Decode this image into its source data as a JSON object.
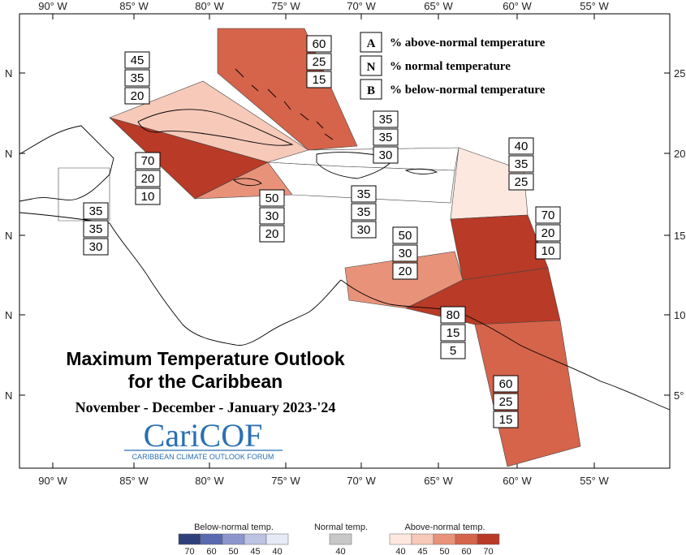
{
  "map": {
    "title_line1": "Maximum Temperature Outlook",
    "title_line2": "for the Caribbean",
    "period": "November - December - January 2023-'24",
    "logo": {
      "text": "CariCOF",
      "subtitle": "CARIBBEAN CLIMATE OUTLOOK FORUM"
    },
    "lon_labels": [
      "90° W",
      "85° W",
      "80° W",
      "75° W",
      "70° W",
      "65° W",
      "60° W",
      "55° W"
    ],
    "lat_labels_left": [
      "N",
      "N",
      "N",
      "N",
      "N"
    ],
    "lat_labels_right": [
      "25",
      "20",
      "15",
      "10",
      "5°"
    ],
    "key": [
      {
        "letter": "A",
        "text": "% above-normal temperature"
      },
      {
        "letter": "N",
        "text": "% normal temperature"
      },
      {
        "letter": "B",
        "text": "% below-normal temperature"
      }
    ],
    "regions": [
      {
        "id": "bahamas",
        "values": [
          "60",
          "25",
          "15"
        ],
        "color": "#d5644b"
      },
      {
        "id": "cuba",
        "values": [
          "45",
          "35",
          "20"
        ],
        "color": "#f6c9b9"
      },
      {
        "id": "cayman-west-cuba",
        "values": [
          "70",
          "20",
          "10"
        ],
        "color": "#b83a27"
      },
      {
        "id": "jamaica",
        "values": [
          "50",
          "30",
          "20"
        ],
        "color": "#e9927a"
      },
      {
        "id": "hispaniola-north",
        "values": [
          "35",
          "35",
          "30"
        ],
        "color": "#ffffff"
      },
      {
        "id": "hispaniola-south",
        "values": [
          "35",
          "35",
          "30"
        ],
        "color": "#ffffff"
      },
      {
        "id": "belize",
        "values": [
          "35",
          "35",
          "30"
        ],
        "color": "#ffffff"
      },
      {
        "id": "leeward-islands",
        "values": [
          "40",
          "35",
          "25"
        ],
        "color": "#fde8e0"
      },
      {
        "id": "windward-islands",
        "values": [
          "70",
          "20",
          "10"
        ],
        "color": "#b83a27"
      },
      {
        "id": "abc-islands",
        "values": [
          "50",
          "30",
          "20"
        ],
        "color": "#e9927a"
      },
      {
        "id": "trinidad",
        "values": [
          "80",
          "15",
          "5"
        ],
        "color": "#b83a27"
      },
      {
        "id": "guianas",
        "values": [
          "60",
          "25",
          "15"
        ],
        "color": "#d5644b"
      }
    ]
  },
  "colorbar": {
    "below": {
      "title": "Below-normal temp.",
      "ticks": [
        "70",
        "60",
        "50",
        "45",
        "40"
      ],
      "colors": [
        "#2f3f7a",
        "#5a6ab0",
        "#8c96cc",
        "#bcc3e3",
        "#e6e9f6"
      ]
    },
    "normal": {
      "title": "Normal temp.",
      "ticks": [
        "40"
      ],
      "colors": [
        "#c8c8c8"
      ]
    },
    "above": {
      "title": "Above-normal temp.",
      "ticks": [
        "40",
        "45",
        "50",
        "60",
        "70"
      ],
      "colors": [
        "#fde8e0",
        "#f6c9b9",
        "#e9927a",
        "#d5644b",
        "#b83a27"
      ]
    }
  }
}
